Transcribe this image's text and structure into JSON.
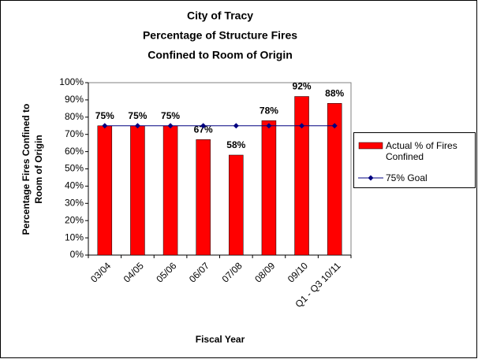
{
  "chart_data": {
    "type": "bar",
    "title": [
      "City of Tracy",
      "Percentage of Structure Fires",
      "Confined to Room of Origin"
    ],
    "y_label": [
      "Percentage Fires Confined to",
      "Room of Origin"
    ],
    "x_label": "Fiscal Year",
    "categories": [
      "03/04",
      "04/05",
      "05/06",
      "06/07",
      "07/08",
      "08/09",
      "09/10",
      "Q1 - Q3 10/11"
    ],
    "series": [
      {
        "name": "Actual % of Fires Confined",
        "type": "bar",
        "color": "#ff0000",
        "values": [
          75,
          75,
          75,
          67,
          58,
          78,
          92,
          88
        ],
        "value_labels": [
          "75%",
          "75%",
          "75%",
          "67%",
          "58%",
          "78%",
          "92%",
          "88%"
        ]
      },
      {
        "name": "75% Goal",
        "type": "line",
        "color": "#000080",
        "values": [
          75,
          75,
          75,
          75,
          75,
          75,
          75,
          75
        ]
      }
    ],
    "ylim": [
      0,
      100
    ],
    "yticks": [
      {
        "value": 0,
        "label": "0%"
      },
      {
        "value": 10,
        "label": "10%"
      },
      {
        "value": 20,
        "label": "20%"
      },
      {
        "value": 30,
        "label": "30%"
      },
      {
        "value": 40,
        "label": "40%"
      },
      {
        "value": 50,
        "label": "50%"
      },
      {
        "value": 60,
        "label": "60%"
      },
      {
        "value": 70,
        "label": "70%"
      },
      {
        "value": 80,
        "label": "80%"
      },
      {
        "value": 90,
        "label": "90%"
      },
      {
        "value": 100,
        "label": "100%"
      }
    ],
    "legend": "right"
  }
}
